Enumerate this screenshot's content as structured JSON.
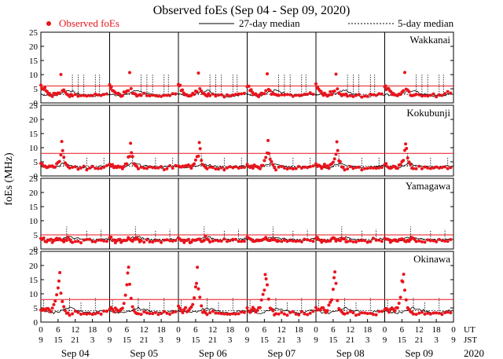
{
  "chart_data": {
    "type": "scatter",
    "title": "Observed foEs (Sep 04 - Sep 09, 2020)",
    "ylabel": "foEs (MHz)",
    "ylim": [
      0,
      25
    ],
    "yticks": [
      0,
      5,
      10,
      15,
      20,
      25
    ],
    "xlim_hours": [
      0,
      144
    ],
    "legend": {
      "observed": "Observed foEs",
      "median27": "27-day median",
      "median5": "5-day median",
      "placement": "top"
    },
    "colors": {
      "observed": "#e8141c",
      "reference_line": "#e8141c",
      "median": "#000000"
    },
    "x_ticks": {
      "ut_label": "UT",
      "jst_label": "JST",
      "ut": [
        "0",
        "6",
        "12",
        "18",
        "0",
        "6",
        "12",
        "18",
        "0",
        "6",
        "12",
        "18",
        "0",
        "6",
        "12",
        "18",
        "0",
        "6",
        "12",
        "18",
        "0",
        "6",
        "12",
        "18",
        "0"
      ],
      "jst": [
        "9",
        "15",
        "21",
        "3",
        "9",
        "15",
        "21",
        "3",
        "9",
        "15",
        "21",
        "3",
        "9",
        "15",
        "21",
        "3",
        "9",
        "15",
        "21",
        "3",
        "9",
        "15",
        "21",
        "3",
        "9"
      ]
    },
    "dates": [
      "Sep 04",
      "Sep 05",
      "Sep 06",
      "Sep 07",
      "Sep 08",
      "Sep 09"
    ],
    "year": "2020",
    "stations": [
      {
        "name": "Wakkanai",
        "reference_line": 6,
        "median27": [
          [
            0,
            3
          ],
          [
            2,
            2.8
          ],
          [
            4,
            2.6
          ],
          [
            6,
            3
          ],
          [
            8,
            4
          ],
          [
            10,
            4.5
          ],
          [
            12,
            3.5
          ],
          [
            14,
            3
          ],
          [
            16,
            2.5
          ],
          [
            18,
            2.4
          ],
          [
            20,
            2.6
          ],
          [
            22,
            3
          ],
          [
            24,
            3
          ]
        ],
        "median5_base": 3,
        "median5_spikes": [
          [
            11,
            10
          ],
          [
            13,
            10
          ],
          [
            15,
            10
          ],
          [
            19,
            10
          ],
          [
            20.5,
            10
          ]
        ],
        "observed": [
          [
            0,
            6.5
          ],
          [
            0.3,
            6
          ],
          [
            0.6,
            5.5
          ],
          [
            1,
            5
          ],
          [
            1.4,
            4.8
          ],
          [
            1.8,
            4
          ],
          [
            2.2,
            3.5
          ],
          [
            2.6,
            3.2
          ],
          [
            3,
            3
          ],
          [
            3.4,
            2.8
          ],
          [
            4,
            2.6
          ],
          [
            4.5,
            3
          ],
          [
            5,
            3.5
          ],
          [
            5.5,
            3.2
          ],
          [
            6,
            3.8
          ],
          [
            6.5,
            4
          ],
          [
            7,
            10.5
          ],
          [
            7.5,
            4.5
          ],
          [
            8,
            4
          ],
          [
            8.5,
            3.5
          ],
          [
            9,
            3
          ],
          [
            9.5,
            2.8
          ],
          [
            10,
            2.6
          ],
          [
            10.5,
            3
          ],
          [
            11,
            2.8
          ],
          [
            12,
            3
          ],
          [
            13,
            2.5
          ],
          [
            14,
            2.8
          ],
          [
            15,
            2.6
          ],
          [
            16,
            2.4
          ],
          [
            17,
            2.8
          ],
          [
            18,
            2.5
          ],
          [
            19,
            3
          ],
          [
            20,
            2.8
          ],
          [
            21,
            3
          ],
          [
            22,
            3.5
          ],
          [
            23,
            3.2
          ]
        ]
      },
      {
        "name": "Kokubunji",
        "reference_line": 8,
        "median27": [
          [
            0,
            3.5
          ],
          [
            2,
            3.2
          ],
          [
            4,
            3
          ],
          [
            6,
            3.4
          ],
          [
            8,
            4.5
          ],
          [
            10,
            4
          ],
          [
            12,
            3.5
          ],
          [
            14,
            3.2
          ],
          [
            16,
            3
          ],
          [
            18,
            3
          ],
          [
            20,
            3.2
          ],
          [
            22,
            3.4
          ],
          [
            24,
            3.5
          ]
        ],
        "median5_base": 3.5,
        "median5_spikes": [
          [
            8,
            8
          ],
          [
            16,
            6.5
          ],
          [
            22,
            6.5
          ]
        ],
        "observed": [
          [
            0,
            4
          ],
          [
            0.5,
            3.8
          ],
          [
            1,
            3.5
          ],
          [
            1.5,
            3.2
          ],
          [
            2,
            3
          ],
          [
            2.5,
            3.4
          ],
          [
            3,
            3.8
          ],
          [
            3.5,
            3.5
          ],
          [
            4,
            3.2
          ],
          [
            4.5,
            3
          ],
          [
            5,
            3.5
          ],
          [
            5.5,
            4
          ],
          [
            6,
            5
          ],
          [
            6.5,
            6
          ],
          [
            7,
            8
          ],
          [
            7.3,
            11
          ],
          [
            7.6,
            9
          ],
          [
            8,
            6
          ],
          [
            8.5,
            4.5
          ],
          [
            9,
            3.5
          ],
          [
            9.5,
            3
          ],
          [
            10,
            2.5
          ],
          [
            11,
            2.8
          ],
          [
            12,
            3
          ],
          [
            13,
            2.6
          ],
          [
            14,
            2.8
          ],
          [
            15,
            3
          ],
          [
            16,
            2.5
          ],
          [
            17,
            2.8
          ],
          [
            18,
            3
          ],
          [
            19,
            2.6
          ],
          [
            20,
            3
          ],
          [
            21,
            3.2
          ],
          [
            22,
            3
          ],
          [
            23,
            3.4
          ]
        ]
      },
      {
        "name": "Yamagawa",
        "reference_line": 5,
        "median27": [
          [
            0,
            3.5
          ],
          [
            2,
            3.2
          ],
          [
            4,
            3
          ],
          [
            6,
            3.2
          ],
          [
            8,
            4
          ],
          [
            10,
            4.2
          ],
          [
            12,
            3.8
          ],
          [
            14,
            3.5
          ],
          [
            16,
            3.2
          ],
          [
            18,
            3
          ],
          [
            20,
            3.2
          ],
          [
            22,
            3.5
          ],
          [
            24,
            3.5
          ]
        ],
        "median5_base": 3.5,
        "median5_spikes": [
          [
            9,
            8
          ],
          [
            16,
            6.5
          ],
          [
            21,
            7
          ]
        ],
        "observed": [
          [
            0,
            4
          ],
          [
            0.5,
            3.8
          ],
          [
            1,
            3.5
          ],
          [
            1.5,
            3
          ],
          [
            2,
            2.5
          ],
          [
            2.5,
            2.8
          ],
          [
            3,
            3.2
          ],
          [
            3.5,
            3
          ],
          [
            4,
            2.6
          ],
          [
            4.5,
            2.8
          ],
          [
            5,
            3
          ],
          [
            5.5,
            3.4
          ],
          [
            6,
            3.5
          ],
          [
            6.5,
            3.8
          ],
          [
            7,
            3.2
          ],
          [
            7.5,
            3
          ],
          [
            8,
            2.8
          ],
          [
            8.5,
            3.2
          ],
          [
            9,
            3.5
          ],
          [
            9.5,
            4
          ],
          [
            10,
            3.5
          ],
          [
            10.5,
            3
          ],
          [
            11,
            2.6
          ],
          [
            12,
            2.8
          ],
          [
            13,
            3
          ],
          [
            14,
            2.5
          ],
          [
            15,
            2.8
          ],
          [
            16,
            3.2
          ],
          [
            17,
            3
          ],
          [
            18,
            2.6
          ],
          [
            19,
            3
          ],
          [
            20,
            3.5
          ],
          [
            21,
            3
          ],
          [
            22,
            2.8
          ],
          [
            23,
            3.2
          ]
        ]
      },
      {
        "name": "Okinawa",
        "reference_line": 8,
        "median27": [
          [
            0,
            4
          ],
          [
            2,
            3.5
          ],
          [
            4,
            3.2
          ],
          [
            6,
            3.5
          ],
          [
            8,
            4.5
          ],
          [
            10,
            5
          ],
          [
            12,
            4.5
          ],
          [
            14,
            4
          ],
          [
            16,
            3.5
          ],
          [
            18,
            3.2
          ],
          [
            20,
            3.5
          ],
          [
            22,
            4
          ],
          [
            24,
            4
          ]
        ],
        "median5_base": 4,
        "median5_spikes": [
          [
            1,
            8
          ],
          [
            10,
            8.5
          ],
          [
            14,
            7
          ],
          [
            19,
            8.5
          ]
        ],
        "observed": [
          [
            0,
            5
          ],
          [
            0.5,
            4.5
          ],
          [
            1,
            4
          ],
          [
            1.5,
            3.8
          ],
          [
            2,
            4.5
          ],
          [
            2.5,
            5
          ],
          [
            3,
            4.2
          ],
          [
            3.5,
            3.8
          ],
          [
            4,
            4.5
          ],
          [
            4.5,
            5.5
          ],
          [
            5,
            7
          ],
          [
            5.5,
            9
          ],
          [
            6,
            13
          ],
          [
            6.3,
            16
          ],
          [
            6.6,
            17
          ],
          [
            7,
            12
          ],
          [
            7.5,
            8
          ],
          [
            8,
            5
          ],
          [
            8.5,
            4
          ],
          [
            9,
            3.5
          ],
          [
            9.5,
            3
          ],
          [
            10,
            2.6
          ],
          [
            11,
            3
          ],
          [
            12,
            3.5
          ],
          [
            13,
            3.2
          ],
          [
            14,
            2.8
          ],
          [
            15,
            3
          ],
          [
            16,
            3.2
          ],
          [
            17,
            2.8
          ],
          [
            18,
            3
          ],
          [
            19,
            3.4
          ],
          [
            20,
            3.2
          ],
          [
            21,
            3
          ],
          [
            22,
            3.5
          ],
          [
            23,
            3.8
          ]
        ]
      }
    ]
  }
}
